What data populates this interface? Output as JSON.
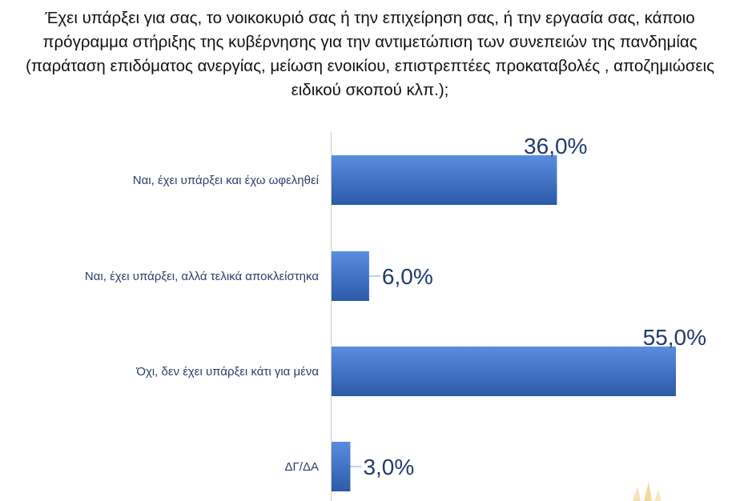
{
  "question": "Έχει υπάρξει για σας, το νοικοκυριό σας ή την επιχείρηση σας, ή την εργασία σας, κάποιο πρόγραμμα στήριξης της κυβέρνησης για την αντιμετώπιση των συνεπειών της πανδημίας (παράταση επιδόματος ανεργίας, μείωση ενοικίου, επιστρεπτέες προκαταβολές , αποζημιώσεις ειδικού σκοπού κλπ.);",
  "chart_data": {
    "type": "bar",
    "orientation": "horizontal",
    "title": "",
    "categories": [
      "Ναι, έχει υπάρξει και έχω ωφεληθεί",
      "Ναι, έχει υπάρξει, αλλά τελικά αποκλείστηκα",
      "Όχι, δεν έχει υπάρξει κάτι για μένα",
      "ΔΓ/ΔΑ"
    ],
    "values": [
      36.0,
      6.0,
      55.0,
      3.0
    ],
    "value_labels": [
      "36,0%",
      "6,0%",
      "55,0%",
      "3,0%"
    ],
    "unit": "%",
    "xlim": [
      0,
      55
    ],
    "grid": false,
    "legend": "none",
    "bar_color": "#3f73c6",
    "label_color": "#203a6e"
  }
}
